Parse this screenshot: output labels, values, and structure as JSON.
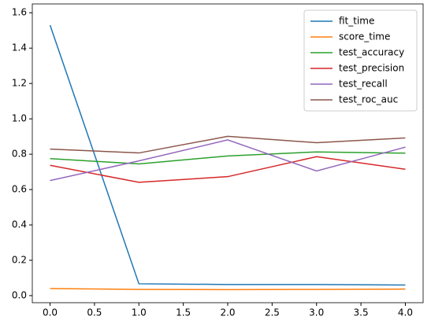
{
  "chart_data": {
    "type": "line",
    "x": [
      0,
      1,
      2,
      3,
      4
    ],
    "series": [
      {
        "name": "fit_time",
        "color": "#1f77b4",
        "values": [
          1.53,
          0.067,
          0.063,
          0.063,
          0.06
        ]
      },
      {
        "name": "score_time",
        "color": "#ff7f0e",
        "values": [
          0.04,
          0.035,
          0.034,
          0.035,
          0.037
        ]
      },
      {
        "name": "test_accuracy",
        "color": "#2ca02c",
        "values": [
          0.775,
          0.745,
          0.79,
          0.813,
          0.806
        ]
      },
      {
        "name": "test_precision",
        "color": "#d62728",
        "values": [
          0.737,
          0.641,
          0.673,
          0.786,
          0.715
        ]
      },
      {
        "name": "test_recall",
        "color": "#9467bd",
        "values": [
          0.651,
          0.762,
          0.881,
          0.705,
          0.84
        ]
      },
      {
        "name": "test_roc_auc",
        "color": "#8c564b",
        "values": [
          0.829,
          0.807,
          0.901,
          0.865,
          0.892
        ]
      }
    ],
    "xlim": [
      -0.2,
      4.2
    ],
    "xticks": [
      {
        "value": 0,
        "label": "0.0"
      },
      {
        "value": 0.5,
        "label": "0.5"
      },
      {
        "value": 1,
        "label": "1.0"
      },
      {
        "value": 1.5,
        "label": "1.5"
      },
      {
        "value": 2,
        "label": "2.0"
      },
      {
        "value": 2.5,
        "label": "2.5"
      },
      {
        "value": 3,
        "label": "3.0"
      },
      {
        "value": 3.5,
        "label": "3.5"
      },
      {
        "value": 4,
        "label": "4.0"
      }
    ],
    "ylim": [
      -0.04,
      1.65
    ],
    "yticks": [
      {
        "value": 0,
        "label": "0.0"
      },
      {
        "value": 0.2,
        "label": "0.2"
      },
      {
        "value": 0.4,
        "label": "0.4"
      },
      {
        "value": 0.6,
        "label": "0.6"
      },
      {
        "value": 0.8,
        "label": "0.8"
      },
      {
        "value": 1,
        "label": "1.0"
      },
      {
        "value": 1.2,
        "label": "1.2"
      },
      {
        "value": 1.4,
        "label": "1.4"
      },
      {
        "value": 1.6,
        "label": "1.6"
      }
    ],
    "legend": "upper right"
  }
}
